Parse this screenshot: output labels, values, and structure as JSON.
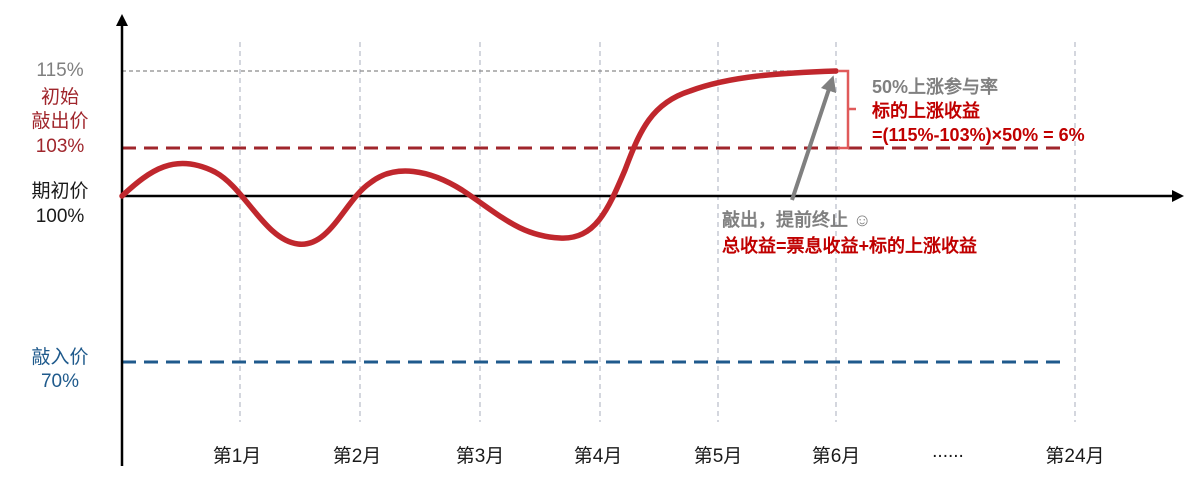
{
  "y_labels": {
    "top_pct": "115%",
    "knockout_label_line1": "初始",
    "knockout_label_line2": "敲出价",
    "knockout_pct": "103%",
    "initial_label": "期初价",
    "initial_pct": "100%",
    "knockin_label": "敲入价",
    "knockin_pct": "70%"
  },
  "x_ticks": [
    "第1月",
    "第2月",
    "第3月",
    "第4月",
    "第5月",
    "第6月",
    "......",
    "第24月"
  ],
  "annotations": {
    "participation": "50%上涨参与率",
    "underlying_gain_title": "标的上涨收益",
    "underlying_gain_formula": "=(115%-103%)×50% = 6%",
    "knockout_early_stop": "敲出，提前终止 ☺",
    "total_return": "总收益=票息收益+标的上涨收益"
  },
  "colors": {
    "curve": "#c0272d",
    "knockout_line": "#a0262c",
    "knockin_line": "#1f5a8c",
    "grid": "#b8bcc8",
    "arrow": "#808080",
    "bracket": "#e05a5a"
  }
}
